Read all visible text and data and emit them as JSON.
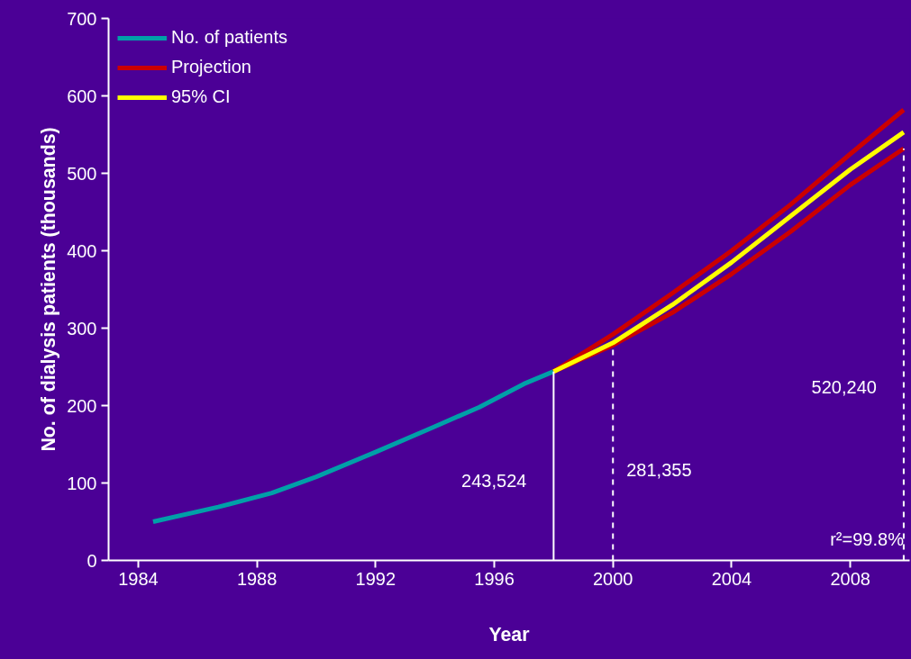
{
  "chart_data": {
    "type": "line",
    "xlabel": "Year",
    "ylabel": "No. of dialysis patients (thousands)",
    "series": [
      {
        "name": "No. of patients",
        "color": "#00a0a8",
        "x": [
          1984.5,
          1986.7,
          1988.5,
          1990,
          1992,
          1994,
          1995.5,
          1997,
          1998
        ],
        "values": [
          50,
          69,
          87,
          108,
          140,
          173,
          198,
          228,
          244
        ]
      },
      {
        "name": "Projection",
        "color": "#cc0000",
        "x": [
          1998,
          2000,
          2002,
          2004,
          2006,
          2008,
          2009.8
        ],
        "values": [
          244,
          292,
          345,
          400,
          460,
          525,
          582
        ]
      },
      {
        "color": "#cc0000",
        "x": [
          1998,
          2000,
          2002,
          2004,
          2006,
          2008,
          2009.8
        ],
        "values": [
          244,
          278,
          320,
          370,
          425,
          485,
          532
        ]
      },
      {
        "name": "95% CI",
        "color": "#ffff00",
        "x": [
          1998,
          2000,
          2002,
          2004,
          2006,
          2008,
          2009.8
        ],
        "values": [
          244,
          281,
          330,
          385,
          445,
          505,
          553
        ]
      }
    ],
    "xlim": [
      1983,
      2010
    ],
    "ylim": [
      0,
      700
    ],
    "xticks": [
      1984,
      1988,
      1992,
      1996,
      2000,
      2004,
      2008
    ],
    "yticks": [
      0,
      100,
      200,
      300,
      400,
      500,
      600,
      700
    ],
    "ref_lines": [
      {
        "axis": "x",
        "value": 1998,
        "line_style": "solid"
      },
      {
        "axis": "x",
        "value": 2000,
        "line_style": "dashed"
      },
      {
        "axis": "x",
        "value": 2009.8,
        "line_style": "dashed"
      }
    ],
    "annotations": [
      "243,524",
      "281,355",
      "520,240",
      "r²=99.8%"
    ],
    "legend": "top left",
    "grid": false,
    "line_style": "solid",
    "marker": "none"
  }
}
